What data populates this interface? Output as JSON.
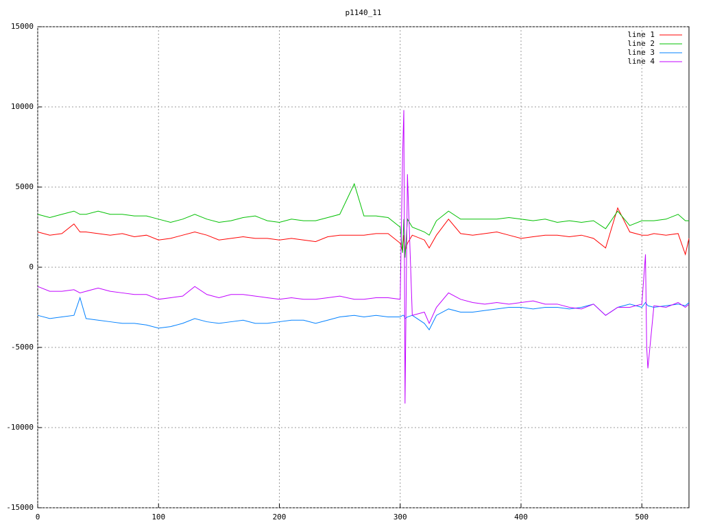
{
  "chart_data": {
    "type": "line",
    "title": "p1140_11",
    "x": [
      0,
      10,
      20,
      30,
      35,
      40,
      50,
      60,
      70,
      80,
      90,
      100,
      110,
      120,
      130,
      140,
      150,
      160,
      170,
      180,
      190,
      200,
      210,
      220,
      230,
      240,
      250,
      262,
      270,
      280,
      290,
      300,
      302,
      303,
      304,
      306,
      310,
      320,
      324,
      330,
      340,
      350,
      360,
      370,
      380,
      390,
      400,
      410,
      420,
      430,
      440,
      450,
      460,
      470,
      480,
      490,
      500,
      503,
      504,
      505,
      510,
      520,
      530,
      536,
      539
    ],
    "series": [
      {
        "name": "line 1",
        "color": "#ff0000",
        "values": [
          2200,
          2000,
          2100,
          2700,
          2200,
          2200,
          2100,
          2000,
          2100,
          1900,
          2000,
          1700,
          1800,
          2000,
          2200,
          2000,
          1700,
          1800,
          1900,
          1800,
          1800,
          1700,
          1800,
          1700,
          1600,
          1900,
          2000,
          2000,
          2000,
          2100,
          2100,
          1500,
          1000,
          2000,
          1000,
          1500,
          2000,
          1700,
          1200,
          2000,
          3000,
          2100,
          2000,
          2100,
          2200,
          2000,
          1800,
          1900,
          2000,
          2000,
          1900,
          2000,
          1800,
          1200,
          3700,
          2200,
          2000,
          2000,
          2000,
          2000,
          2100,
          2000,
          2100,
          800,
          1800
        ]
      },
      {
        "name": "line 2",
        "color": "#00c000",
        "values": [
          3300,
          3100,
          3300,
          3500,
          3300,
          3300,
          3500,
          3300,
          3300,
          3200,
          3200,
          3000,
          2800,
          3000,
          3300,
          3000,
          2800,
          2900,
          3100,
          3200,
          2900,
          2800,
          3000,
          2900,
          2900,
          3100,
          3300,
          5200,
          3200,
          3200,
          3100,
          2500,
          900,
          3000,
          600,
          3000,
          2500,
          2200,
          2000,
          2900,
          3500,
          3000,
          3000,
          3000,
          3000,
          3100,
          3000,
          2900,
          3000,
          2800,
          2900,
          2800,
          2900,
          2400,
          3500,
          2600,
          2900,
          2900,
          2900,
          2900,
          2900,
          3000,
          3300,
          2900,
          2900
        ]
      },
      {
        "name": "line 3",
        "color": "#0080ff",
        "values": [
          -3000,
          -3200,
          -3100,
          -3000,
          -1900,
          -3200,
          -3300,
          -3400,
          -3500,
          -3500,
          -3600,
          -3800,
          -3700,
          -3500,
          -3200,
          -3400,
          -3500,
          -3400,
          -3300,
          -3500,
          -3500,
          -3400,
          -3300,
          -3300,
          -3500,
          -3300,
          -3100,
          -3000,
          -3100,
          -3000,
          -3100,
          -3100,
          -3000,
          -3000,
          -3200,
          -3100,
          -3000,
          -3500,
          -3900,
          -3000,
          -2600,
          -2800,
          -2800,
          -2700,
          -2600,
          -2500,
          -2500,
          -2600,
          -2500,
          -2500,
          -2600,
          -2500,
          -2300,
          -3000,
          -2500,
          -2300,
          -2500,
          -2200,
          -2300,
          -2400,
          -2500,
          -2400,
          -2300,
          -2400,
          -2200
        ]
      },
      {
        "name": "line 4",
        "color": "#c000ff",
        "values": [
          -1200,
          -1500,
          -1500,
          -1400,
          -1600,
          -1500,
          -1300,
          -1500,
          -1600,
          -1700,
          -1700,
          -2000,
          -1900,
          -1800,
          -1200,
          -1700,
          -1900,
          -1700,
          -1700,
          -1800,
          -1900,
          -2000,
          -1900,
          -2000,
          -2000,
          -1900,
          -1800,
          -2000,
          -2000,
          -1900,
          -1900,
          -2000,
          7000,
          9800,
          -8500,
          5800,
          -3000,
          -2800,
          -3500,
          -2500,
          -1600,
          -2000,
          -2200,
          -2300,
          -2200,
          -2300,
          -2200,
          -2100,
          -2300,
          -2300,
          -2500,
          -2600,
          -2300,
          -3000,
          -2500,
          -2500,
          -2300,
          800,
          -5000,
          -6300,
          -2400,
          -2500,
          -2200,
          -2500,
          -2300
        ]
      }
    ],
    "xlim": [
      0,
      539
    ],
    "ylim": [
      -15000,
      15000
    ],
    "xticks": [
      0,
      100,
      200,
      300,
      400,
      500
    ],
    "yticks": [
      -15000,
      -10000,
      -5000,
      0,
      5000,
      10000,
      15000
    ],
    "grid": true,
    "legend": "top-right"
  }
}
